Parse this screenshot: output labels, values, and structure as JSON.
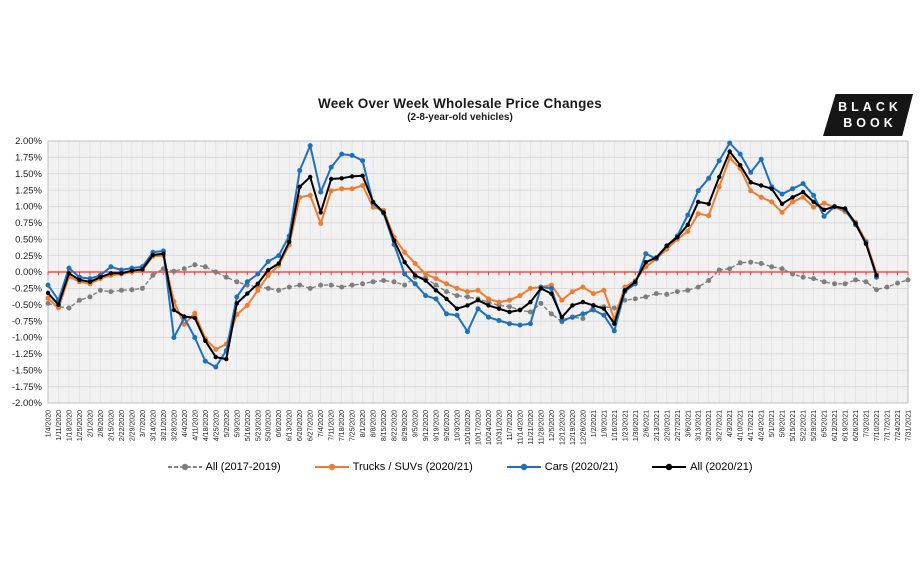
{
  "header": {
    "title": "Week Over Week Wholesale Price Changes",
    "subtitle": "(2-8-year-old vehicles)"
  },
  "logo": {
    "line1": "BLACK",
    "line2": "BOOK",
    "bg": "#161616",
    "fg": "#ffffff"
  },
  "chart_data": {
    "type": "line",
    "title": "Week Over Week Wholesale Price Changes",
    "subtitle": "(2-8-year-old vehicles)",
    "xlabel": "",
    "ylabel": "",
    "ylim": [
      -2.0,
      2.0
    ],
    "y_tick_step": 0.25,
    "y_tick_labels": [
      "2.00%",
      "1.75%",
      "1.50%",
      "1.25%",
      "1.00%",
      "0.75%",
      "0.50%",
      "0.25%",
      "0.00%",
      "-0.25%",
      "-0.50%",
      "-0.75%",
      "-1.00%",
      "-1.25%",
      "-1.50%",
      "-1.75%",
      "-2.00%"
    ],
    "grid": true,
    "plot_bg": "#F1F1F1",
    "grid_color": "#DCDCDC",
    "border_color": "#BFBFBF",
    "zero_line_color": "#FF2A2A",
    "legend_position": "bottom",
    "categories": [
      "1/4/2020",
      "1/11/2020",
      "1/18/2020",
      "1/25/2020",
      "2/1/2020",
      "2/8/2020",
      "2/15/2020",
      "2/22/2020",
      "2/29/2020",
      "3/7/2020",
      "3/14/2020",
      "3/21/2020",
      "3/28/2020",
      "4/4/2020",
      "4/11/2020",
      "4/18/2020",
      "4/25/2020",
      "5/2/2020",
      "5/9/2020",
      "5/16/2020",
      "5/23/2020",
      "5/30/2020",
      "6/6/2020",
      "6/13/2020",
      "6/20/2020",
      "6/27/2020",
      "7/4/2020",
      "7/11/2020",
      "7/18/2020",
      "7/25/2020",
      "8/1/2020",
      "8/8/2020",
      "8/15/2020",
      "8/22/2020",
      "8/29/2020",
      "9/5/2020",
      "9/12/2020",
      "9/19/2020",
      "9/26/2020",
      "10/3/2020",
      "10/10/2020",
      "10/17/2020",
      "10/24/2020",
      "10/31/2020",
      "11/7/2020",
      "11/14/2020",
      "11/21/2020",
      "11/28/2020",
      "12/5/2020",
      "12/12/2020",
      "12/19/2020",
      "12/26/2020",
      "1/2/2021",
      "1/9/2021",
      "1/16/2021",
      "1/23/2021",
      "1/30/2021",
      "2/6/2021",
      "2/13/2021",
      "2/20/2021",
      "2/27/2021",
      "3/6/2021",
      "3/13/2021",
      "3/20/2021",
      "3/27/2021",
      "4/3/2021",
      "4/10/2021",
      "4/17/2021",
      "4/24/2021",
      "5/1/2021",
      "5/8/2021",
      "5/15/2021",
      "5/22/2021",
      "5/29/2021",
      "6/5/2021",
      "6/12/2021",
      "6/19/2021",
      "6/26/2021",
      "7/3/2021",
      "7/10/2021",
      "7/17/2021",
      "7/24/2021",
      "7/31/2021"
    ],
    "series": [
      {
        "name": "All (2017-2019)",
        "color": "#7F7F7F",
        "dashed": true,
        "marker": "circle",
        "values": [
          -0.48,
          -0.53,
          -0.55,
          -0.43,
          -0.38,
          -0.28,
          -0.3,
          -0.28,
          -0.27,
          -0.25,
          -0.05,
          0.05,
          0.01,
          0.05,
          0.11,
          0.08,
          0.0,
          -0.08,
          -0.15,
          -0.2,
          -0.23,
          -0.25,
          -0.28,
          -0.23,
          -0.2,
          -0.25,
          -0.2,
          -0.2,
          -0.23,
          -0.2,
          -0.18,
          -0.15,
          -0.13,
          -0.15,
          -0.2,
          -0.08,
          -0.09,
          -0.2,
          -0.3,
          -0.36,
          -0.38,
          -0.41,
          -0.46,
          -0.51,
          -0.53,
          -0.58,
          -0.61,
          -0.48,
          -0.64,
          -0.76,
          -0.69,
          -0.71,
          -0.51,
          -0.53,
          -0.55,
          -0.43,
          -0.41,
          -0.38,
          -0.33,
          -0.34,
          -0.3,
          -0.28,
          -0.23,
          -0.13,
          0.03,
          0.05,
          0.14,
          0.15,
          0.13,
          0.08,
          0.05,
          -0.03,
          -0.08,
          -0.1,
          -0.15,
          -0.18,
          -0.18,
          -0.12,
          -0.15,
          -0.27,
          -0.23,
          -0.17,
          -0.12
        ]
      },
      {
        "name": "Trucks / SUVs (2020/21)",
        "color": "#ED7D31",
        "dashed": false,
        "marker": "circle",
        "values": [
          -0.4,
          -0.55,
          -0.07,
          -0.15,
          -0.18,
          -0.1,
          -0.05,
          -0.03,
          0.0,
          0.03,
          0.24,
          0.25,
          -0.45,
          -0.8,
          -0.63,
          -1.02,
          -1.18,
          -1.1,
          -0.65,
          -0.51,
          -0.28,
          -0.05,
          0.1,
          0.41,
          1.14,
          1.17,
          0.74,
          1.24,
          1.27,
          1.27,
          1.32,
          0.99,
          0.94,
          0.53,
          0.3,
          0.13,
          -0.03,
          -0.1,
          -0.18,
          -0.25,
          -0.3,
          -0.28,
          -0.41,
          -0.46,
          -0.43,
          -0.36,
          -0.25,
          -0.23,
          -0.2,
          -0.43,
          -0.3,
          -0.23,
          -0.33,
          -0.28,
          -0.72,
          -0.23,
          -0.13,
          0.08,
          0.2,
          0.35,
          0.5,
          0.62,
          0.89,
          0.86,
          1.3,
          1.74,
          1.58,
          1.24,
          1.14,
          1.07,
          0.91,
          1.07,
          1.14,
          0.99,
          1.05,
          0.99,
          0.92,
          0.76,
          0.47,
          -0.02,
          null,
          null,
          null
        ]
      },
      {
        "name": "Cars (2020/21)",
        "color": "#1E70BF",
        "dashed": false,
        "marker": "circle",
        "values": [
          -0.2,
          -0.43,
          0.06,
          -0.08,
          -0.1,
          -0.05,
          0.08,
          0.03,
          0.06,
          0.08,
          0.3,
          0.32,
          -1.0,
          -0.7,
          -1.0,
          -1.36,
          -1.45,
          -1.2,
          -0.38,
          -0.15,
          -0.03,
          0.16,
          0.25,
          0.55,
          1.55,
          1.93,
          1.22,
          1.6,
          1.8,
          1.78,
          1.7,
          1.05,
          0.9,
          0.42,
          -0.03,
          -0.18,
          -0.36,
          -0.41,
          -0.64,
          -0.66,
          -0.91,
          -0.56,
          -0.69,
          -0.74,
          -0.79,
          -0.81,
          -0.79,
          -0.23,
          -0.25,
          -0.74,
          -0.69,
          -0.64,
          -0.58,
          -0.66,
          -0.9,
          -0.3,
          -0.18,
          0.28,
          0.2,
          0.4,
          0.55,
          0.87,
          1.24,
          1.43,
          1.7,
          1.97,
          1.8,
          1.52,
          1.72,
          1.3,
          1.19,
          1.27,
          1.35,
          1.17,
          0.85,
          1.0,
          0.95,
          0.72,
          0.45,
          -0.08,
          null,
          null,
          null
        ]
      },
      {
        "name": "All (2020/21)",
        "color": "#000000",
        "dashed": false,
        "marker": "circle",
        "values": [
          -0.32,
          -0.5,
          -0.02,
          -0.12,
          -0.15,
          -0.08,
          -0.02,
          -0.02,
          0.02,
          0.04,
          0.26,
          0.28,
          -0.58,
          -0.68,
          -0.7,
          -1.05,
          -1.3,
          -1.33,
          -0.48,
          -0.33,
          -0.18,
          0.03,
          0.13,
          0.46,
          1.3,
          1.45,
          0.91,
          1.42,
          1.43,
          1.46,
          1.47,
          1.07,
          0.91,
          0.48,
          0.15,
          -0.05,
          -0.13,
          -0.28,
          -0.41,
          -0.56,
          -0.51,
          -0.43,
          -0.51,
          -0.56,
          -0.61,
          -0.58,
          -0.46,
          -0.25,
          -0.33,
          -0.69,
          -0.51,
          -0.46,
          -0.51,
          -0.56,
          -0.79,
          -0.28,
          -0.15,
          0.15,
          0.22,
          0.4,
          0.53,
          0.72,
          1.07,
          1.04,
          1.45,
          1.84,
          1.63,
          1.37,
          1.32,
          1.27,
          1.04,
          1.14,
          1.22,
          1.07,
          0.95,
          1.0,
          0.97,
          0.74,
          0.43,
          -0.05,
          null,
          null,
          null
        ]
      }
    ]
  }
}
